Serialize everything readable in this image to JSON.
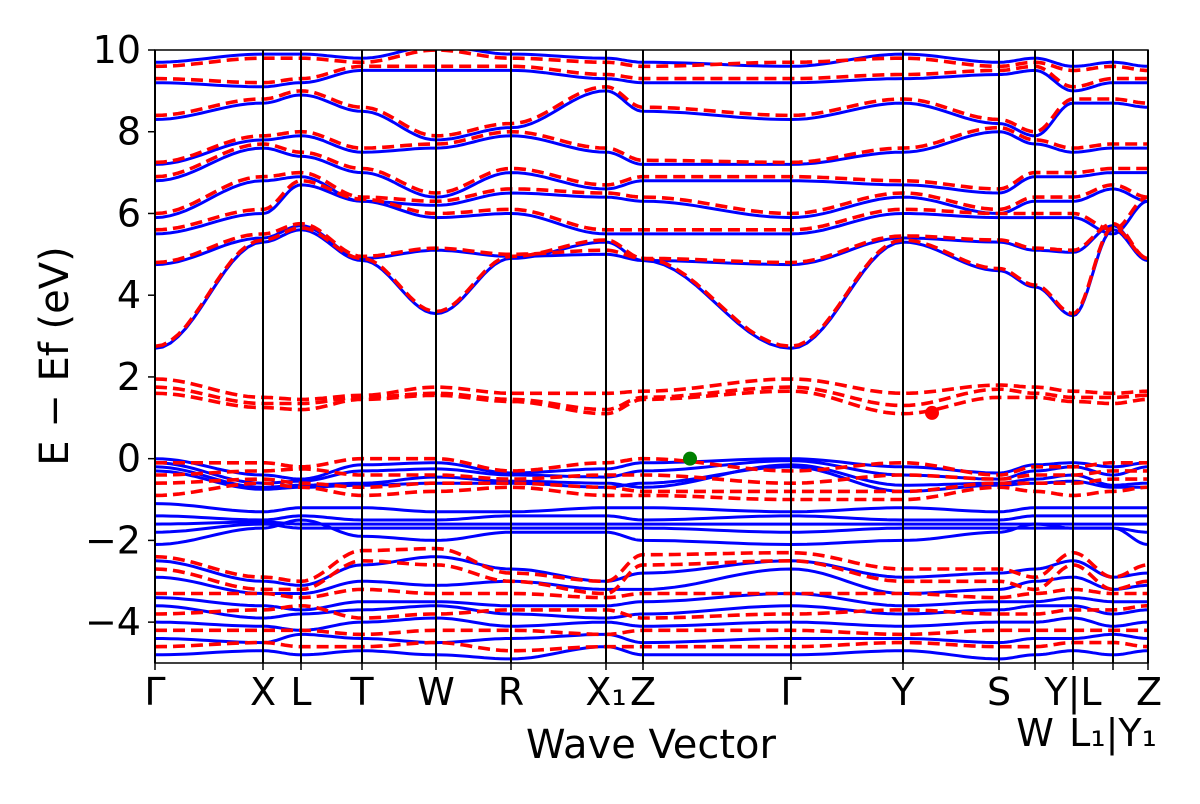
{
  "chart_data": {
    "type": "line",
    "title": "",
    "xlabel": "Wave Vector",
    "ylabel": "E − Ef (eV)",
    "ylabel_main": "E − E",
    "ylabel_sub": "f",
    "ylabel_unit": " (eV)",
    "ylim": [
      -5,
      10
    ],
    "yticks": [
      -4,
      -2,
      0,
      2,
      4,
      6,
      8,
      10
    ],
    "ytick_labels": [
      "−4",
      "−2",
      "0",
      "2",
      "4",
      "6",
      "8",
      "10"
    ],
    "grid": false,
    "kpoints": [
      {
        "label": "Γ",
        "k": 0
      },
      {
        "label": "X",
        "k": 0.54
      },
      {
        "label": "L",
        "k": 0.73
      },
      {
        "label": "T",
        "k": 1.035
      },
      {
        "label": "W",
        "k": 1.405
      },
      {
        "label": "R",
        "k": 1.78
      },
      {
        "label": "X₁",
        "k": 2.255
      },
      {
        "label": "Z",
        "k": 2.44
      },
      {
        "label": "Γ",
        "k": 3.18
      },
      {
        "label": "Y",
        "k": 3.74
      },
      {
        "label": "S",
        "k": 4.22
      },
      {
        "label": "W",
        "k": 4.4
      },
      {
        "label": "Y|L",
        "k": 4.59
      },
      {
        "label": "L₁|Y₁",
        "k": 4.79
      },
      {
        "label": "Z",
        "k": 4.965
      }
    ],
    "colors": {
      "blue": "#0000ff",
      "red": "#ff0000",
      "marker_vbm": "#008000",
      "marker_cbm": "#ff0000"
    },
    "series": [
      {
        "style": "blue-solid",
        "bands": [
          [
            2.7,
            5.3,
            5.6,
            4.85,
            3.55,
            4.9,
            5.3,
            4.85,
            2.7,
            5.3,
            4.6,
            4.2,
            3.5,
            5.6,
            4.85
          ],
          [
            4.75,
            5.4,
            5.7,
            4.9,
            5.1,
            4.95,
            5.0,
            4.85,
            4.75,
            5.4,
            5.3,
            5.1,
            5.05,
            5.7,
            4.85
          ],
          [
            5.5,
            6.0,
            6.7,
            6.3,
            5.9,
            6.0,
            5.5,
            5.5,
            5.5,
            6.0,
            5.9,
            5.9,
            5.9,
            5.5,
            6.3
          ],
          [
            5.9,
            6.8,
            6.9,
            6.3,
            6.2,
            6.5,
            6.4,
            6.3,
            5.9,
            6.4,
            6.0,
            6.3,
            6.3,
            6.6,
            6.3
          ],
          [
            6.8,
            7.6,
            7.4,
            7.0,
            6.4,
            7.0,
            6.6,
            6.8,
            6.8,
            6.7,
            6.5,
            6.9,
            6.9,
            7.0,
            7.0
          ],
          [
            7.2,
            7.8,
            7.9,
            7.5,
            7.6,
            7.9,
            7.5,
            7.2,
            7.2,
            7.5,
            8.0,
            7.7,
            7.5,
            7.6,
            7.6
          ],
          [
            8.3,
            8.7,
            8.9,
            8.5,
            7.8,
            8.1,
            9.0,
            8.5,
            8.3,
            8.7,
            8.2,
            7.9,
            8.7,
            8.7,
            8.6
          ],
          [
            9.2,
            9.1,
            9.2,
            9.5,
            9.5,
            9.5,
            9.3,
            9.2,
            9.2,
            9.3,
            9.4,
            9.5,
            9.0,
            9.2,
            9.2
          ],
          [
            9.7,
            9.9,
            9.9,
            9.8,
            10.1,
            9.9,
            9.8,
            9.7,
            9.6,
            9.9,
            9.7,
            9.8,
            9.6,
            9.7,
            9.6
          ],
          [
            0,
            -0.4,
            -0.5,
            -0.15,
            -0.1,
            -0.35,
            -0.25,
            -0.1,
            0,
            -0.2,
            -0.35,
            -0.15,
            -0.1,
            -0.2,
            -0.1
          ],
          [
            -0.1,
            -0.6,
            -0.55,
            -0.3,
            -0.25,
            -0.4,
            -0.45,
            -0.3,
            -0.05,
            -0.4,
            -0.5,
            -0.3,
            -0.2,
            -0.4,
            -0.2
          ],
          [
            -0.2,
            -0.7,
            -0.65,
            -0.6,
            -0.45,
            -0.55,
            -0.6,
            -0.7,
            -0.15,
            -0.65,
            -0.6,
            -0.5,
            -0.4,
            -0.65,
            -0.6
          ],
          [
            -0.3,
            -0.75,
            -0.7,
            -0.65,
            -0.6,
            -0.6,
            -0.7,
            -0.6,
            -0.2,
            -0.8,
            -0.65,
            -0.6,
            -0.55,
            -0.7,
            -0.7
          ],
          [
            -1.1,
            -1.3,
            -1.2,
            -1.2,
            -1.3,
            -1.3,
            -1.2,
            -1.2,
            -1.3,
            -1.2,
            -1.3,
            -1.2,
            -1.2,
            -1.2,
            -1.2
          ],
          [
            -1.4,
            -1.5,
            -1.4,
            -1.5,
            -1.5,
            -1.4,
            -1.4,
            -1.5,
            -1.4,
            -1.5,
            -1.5,
            -1.4,
            -1.4,
            -1.4,
            -1.4
          ],
          [
            -1.6,
            -1.55,
            -1.6,
            -1.6,
            -1.6,
            -1.6,
            -1.6,
            -1.6,
            -1.6,
            -1.6,
            -1.6,
            -1.6,
            -1.6,
            -1.6,
            -1.6
          ],
          [
            -1.8,
            -1.6,
            -1.7,
            -1.7,
            -1.7,
            -1.7,
            -1.7,
            -1.7,
            -1.8,
            -1.7,
            -1.7,
            -1.7,
            -1.7,
            -1.7,
            -1.8
          ],
          [
            -2.1,
            -1.7,
            -1.5,
            -1.9,
            -2.0,
            -1.8,
            -1.8,
            -2.0,
            -2.1,
            -2.0,
            -1.8,
            -1.6,
            -1.7,
            -1.7,
            -2.1
          ],
          [
            -2.5,
            -3.0,
            -3.1,
            -2.6,
            -2.4,
            -2.7,
            -3.0,
            -2.8,
            -2.5,
            -2.9,
            -2.8,
            -2.7,
            -2.5,
            -2.9,
            -2.8
          ],
          [
            -2.9,
            -3.3,
            -3.3,
            -3.0,
            -3.1,
            -3.0,
            -3.2,
            -3.2,
            -2.7,
            -3.3,
            -3.2,
            -3.0,
            -2.9,
            -3.2,
            -3.1
          ],
          [
            -3.4,
            -3.6,
            -3.7,
            -3.5,
            -3.5,
            -3.6,
            -3.6,
            -3.5,
            -3.3,
            -3.6,
            -3.5,
            -3.5,
            -3.4,
            -3.5,
            -3.5
          ],
          [
            -3.6,
            -3.9,
            -3.8,
            -3.7,
            -3.6,
            -3.8,
            -3.9,
            -3.8,
            -3.6,
            -3.8,
            -3.7,
            -3.6,
            -3.6,
            -3.8,
            -3.7
          ],
          [
            -4.0,
            -4.1,
            -4.2,
            -4.0,
            -3.9,
            -4.1,
            -4.0,
            -4.1,
            -4.0,
            -4.1,
            -4.0,
            -4.0,
            -3.9,
            -4.1,
            -4.0
          ],
          [
            -4.4,
            -4.5,
            -4.3,
            -4.4,
            -4.5,
            -4.4,
            -4.3,
            -4.5,
            -4.4,
            -4.4,
            -4.5,
            -4.4,
            -4.4,
            -4.3,
            -4.4
          ],
          [
            -4.8,
            -4.7,
            -4.8,
            -4.7,
            -4.8,
            -4.9,
            -4.6,
            -4.8,
            -4.8,
            -4.7,
            -4.9,
            -4.8,
            -4.7,
            -4.8,
            -4.7
          ]
        ]
      },
      {
        "style": "red-dashed",
        "bands": [
          [
            2.75,
            5.35,
            5.65,
            4.9,
            3.6,
            4.95,
            5.35,
            4.9,
            2.75,
            5.35,
            4.65,
            4.25,
            3.55,
            5.65,
            4.9
          ],
          [
            4.8,
            5.5,
            5.75,
            4.95,
            5.15,
            5.0,
            5.1,
            4.9,
            4.8,
            5.45,
            5.35,
            5.15,
            5.1,
            5.75,
            4.9
          ],
          [
            5.6,
            6.1,
            6.8,
            6.35,
            6.0,
            6.1,
            5.6,
            5.6,
            5.6,
            6.1,
            6.0,
            6.0,
            6.0,
            5.6,
            6.4
          ],
          [
            6.0,
            6.9,
            7.0,
            6.4,
            6.3,
            6.6,
            6.5,
            6.4,
            6.0,
            6.5,
            6.1,
            6.4,
            6.4,
            6.7,
            6.4
          ],
          [
            6.9,
            7.7,
            7.5,
            7.1,
            6.5,
            7.1,
            6.7,
            6.9,
            6.9,
            6.8,
            6.6,
            7.0,
            7.0,
            7.1,
            7.1
          ],
          [
            7.25,
            7.9,
            8.0,
            7.6,
            7.7,
            8.0,
            7.6,
            7.3,
            7.25,
            7.6,
            8.1,
            7.8,
            7.6,
            7.7,
            7.7
          ],
          [
            8.4,
            8.8,
            9.0,
            8.6,
            7.9,
            8.2,
            9.1,
            8.6,
            8.4,
            8.8,
            8.3,
            8.0,
            8.8,
            8.8,
            8.7
          ],
          [
            9.3,
            9.2,
            9.3,
            9.6,
            9.6,
            9.6,
            9.4,
            9.3,
            9.3,
            9.4,
            9.5,
            9.6,
            9.1,
            9.3,
            9.3
          ],
          [
            9.6,
            9.8,
            9.8,
            9.7,
            10.0,
            9.8,
            9.7,
            9.6,
            9.7,
            9.8,
            9.6,
            9.7,
            9.5,
            9.6,
            9.5
          ],
          [
            1.95,
            1.5,
            1.45,
            1.55,
            1.75,
            1.6,
            1.6,
            1.65,
            1.95,
            1.6,
            1.8,
            1.75,
            1.65,
            1.6,
            1.65
          ],
          [
            1.75,
            1.35,
            1.35,
            1.5,
            1.6,
            1.45,
            1.2,
            1.5,
            1.75,
            1.3,
            1.7,
            1.6,
            1.5,
            1.5,
            1.55
          ],
          [
            1.6,
            1.25,
            1.2,
            1.45,
            1.55,
            1.4,
            1.1,
            1.45,
            1.65,
            1.1,
            1.5,
            1.5,
            1.4,
            1.35,
            1.45
          ],
          [
            -0.1,
            -0.1,
            -0.2,
            0,
            0,
            -0.3,
            -0.1,
            0,
            -0.3,
            -0.1,
            -0.4,
            -0.2,
            -0.2,
            -0.1,
            -0.1
          ],
          [
            -0.4,
            -0.3,
            -0.25,
            -0.4,
            -0.4,
            -0.5,
            -0.4,
            -0.4,
            -0.6,
            -0.4,
            -0.5,
            -0.4,
            -0.4,
            -0.3,
            -0.3
          ],
          [
            -0.6,
            -0.5,
            -0.6,
            -0.7,
            -0.6,
            -0.6,
            -0.7,
            -0.8,
            -0.8,
            -0.8,
            -0.6,
            -0.6,
            -0.6,
            -0.5,
            -0.5
          ],
          [
            -0.9,
            -0.6,
            -0.7,
            -0.9,
            -0.8,
            -0.7,
            -0.9,
            -0.9,
            -1.0,
            -1.0,
            -0.7,
            -0.8,
            -0.9,
            -0.8,
            -0.7
          ],
          [
            -2.4,
            -2.9,
            -3.0,
            -2.25,
            -2.2,
            -2.8,
            -3.0,
            -2.35,
            -2.3,
            -2.7,
            -2.7,
            -2.9,
            -2.3,
            -2.9,
            -2.6
          ],
          [
            -2.7,
            -3.2,
            -3.2,
            -2.5,
            -2.6,
            -3.0,
            -3.3,
            -2.6,
            -2.5,
            -3.0,
            -3.0,
            -3.2,
            -2.6,
            -3.2,
            -3.0
          ],
          [
            -3.3,
            -3.3,
            -3.4,
            -3.2,
            -3.3,
            -3.3,
            -3.4,
            -3.3,
            -3.3,
            -3.3,
            -3.4,
            -3.3,
            -3.2,
            -3.3,
            -3.3
          ],
          [
            -3.8,
            -3.7,
            -3.6,
            -3.9,
            -3.8,
            -3.7,
            -3.7,
            -3.9,
            -3.8,
            -3.7,
            -3.8,
            -3.8,
            -3.7,
            -3.7,
            -3.6
          ],
          [
            -4.2,
            -4.2,
            -4.2,
            -4.3,
            -4.2,
            -4.2,
            -4.3,
            -4.2,
            -4.2,
            -4.3,
            -4.2,
            -4.2,
            -4.2,
            -4.2,
            -4.2
          ],
          [
            -4.6,
            -4.5,
            -4.6,
            -4.6,
            -4.5,
            -4.7,
            -4.6,
            -4.6,
            -4.6,
            -4.5,
            -4.6,
            -4.6,
            -4.5,
            -4.5,
            -4.6
          ]
        ]
      }
    ],
    "markers": [
      {
        "name": "vbm",
        "k": 2.675,
        "energy": 0.0,
        "color": "#008000"
      },
      {
        "name": "cbm",
        "k": 3.885,
        "energy": 1.12,
        "color": "#ff0000"
      }
    ]
  }
}
